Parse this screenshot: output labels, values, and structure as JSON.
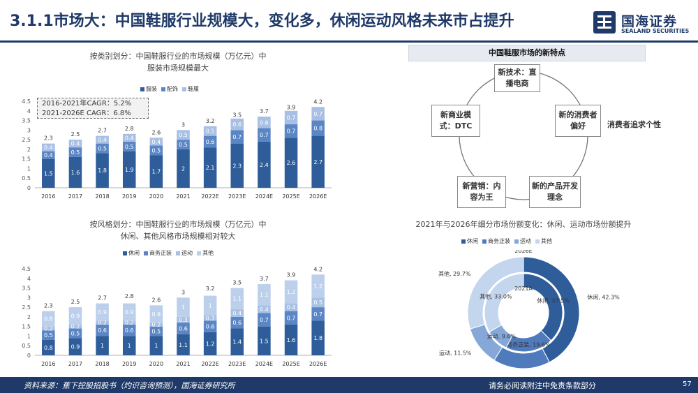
{
  "header": {
    "title": "3.1.1市场大：中国鞋服行业规模大，变化多，休闲运动风格未来市占提升",
    "logo_cn": "国海证券",
    "logo_en": "SEALAND SECURITIES"
  },
  "colors": {
    "navy": "#1f3a68",
    "dark": "#2e5d9a",
    "mid": "#5b86c5",
    "light": "#a8c0e4",
    "pale": "#d5e0f1"
  },
  "chart_left": {
    "title_line1": "按类别划分：中国鞋服行业的市场规模（万亿元）中",
    "title_line2": "服装市场规模最大",
    "cagr_line1": "2016-2021年CAGR：5.2%",
    "cagr_line2": "2021-2026E CAGR：6.8%"
  },
  "chart_right_top": {
    "title": "中国鞋服市场的新特点",
    "nodes": [
      "新技术：直播电商",
      "新的消费者偏好",
      "新的产品开发理念",
      "新营销：内容为王",
      "新商业模式：DTC"
    ],
    "side_note": "消费者追求个性"
  },
  "donut": {
    "title": "2021年与2026年细分市场份额变化：休闲、运动市场份额提升"
  },
  "chart_data": [
    {
      "type": "bar",
      "stacked": true,
      "title": "按类别划分：中国鞋服行业的市场规模（万亿元）中服装市场规模最大",
      "categories": [
        "2016",
        "2017",
        "2018",
        "2019",
        "2020",
        "2021",
        "2022E",
        "2023E",
        "2024E",
        "2025E",
        "2026E"
      ],
      "series": [
        {
          "name": "服装",
          "values": [
            1.5,
            1.6,
            1.8,
            1.9,
            1.7,
            2,
            2.1,
            2.3,
            2.4,
            2.6,
            2.7
          ]
        },
        {
          "name": "配饰",
          "values": [
            0.4,
            0.5,
            0.5,
            0.5,
            0.5,
            0.5,
            0.6,
            0.7,
            0.7,
            0.7,
            0.8
          ]
        },
        {
          "name": "鞋履",
          "values": [
            0.4,
            0.4,
            0.4,
            0.4,
            0.4,
            0.5,
            0.5,
            0.6,
            0.6,
            0.7,
            0.7
          ]
        }
      ],
      "totals": [
        2.3,
        2.5,
        2.7,
        2.8,
        2.6,
        3,
        3.2,
        3.5,
        3.7,
        3.9,
        4.2
      ],
      "segment_labels_shown": [
        [
          "1.5",
          "0.4",
          "0.4"
        ],
        [
          "1.6",
          "0.5",
          "0.4"
        ],
        [
          "1.8",
          "0.5",
          "0.4"
        ],
        [
          "1.9",
          "0.5",
          "0.4"
        ],
        [
          "1.7",
          "0.5",
          "0.4"
        ],
        [
          "2",
          "0.5",
          "0.5"
        ],
        [
          "2.1",
          "0.6",
          "0.5"
        ],
        [
          "2.3",
          "0.7",
          "0.6"
        ],
        [
          "2.4",
          "0.7",
          "0.6"
        ],
        [
          "2.6",
          "0.7",
          "0.7"
        ],
        [
          "2.7",
          "0.8",
          "0.7"
        ]
      ],
      "yticks": [
        "0",
        "0.5",
        "1",
        "1.5",
        "2",
        "2.5",
        "3",
        "3.5",
        "4",
        "4.5"
      ],
      "ylim": [
        0,
        4.5
      ]
    },
    {
      "type": "bar",
      "stacked": true,
      "title": "按风格划分：中国鞋服行业的市场规模（万亿元）中休闲、其他风格市场规模相对较大",
      "categories": [
        "2016",
        "2017",
        "2018",
        "2019",
        "2020",
        "2021",
        "2022E",
        "2023E",
        "2024E",
        "2025E",
        "2026E"
      ],
      "series": [
        {
          "name": "休闲",
          "values": [
            0.8,
            0.9,
            1,
            1,
            1,
            1.1,
            1.2,
            1.4,
            1.5,
            1.6,
            1.8
          ]
        },
        {
          "name": "商务正装",
          "values": [
            0.5,
            0.5,
            0.6,
            0.6,
            0.5,
            0.6,
            0.6,
            0.6,
            0.7,
            0.7,
            0.7
          ]
        },
        {
          "name": "运动",
          "values": [
            0.2,
            0.2,
            0.2,
            0.2,
            0.2,
            0.3,
            0.3,
            0.4,
            0.4,
            0.4,
            0.5
          ]
        },
        {
          "name": "其他",
          "values": [
            0.8,
            0.9,
            0.9,
            0.9,
            0.9,
            1,
            1,
            1.1,
            1.1,
            1.2,
            1.2
          ]
        }
      ],
      "totals": [
        2.3,
        2.5,
        2.7,
        2.8,
        2.6,
        3,
        3.2,
        3.5,
        3.7,
        3.9,
        4.2
      ],
      "yticks": [
        "0",
        "0.5",
        "1",
        "1.5",
        "2",
        "2.5",
        "3",
        "3.5",
        "4",
        "4.5"
      ],
      "ylim": [
        0,
        4.5
      ]
    },
    {
      "type": "pie",
      "donut": true,
      "title": "2021年与2026年细分市场份额变化：休闲、运动市场份额提升",
      "legend": [
        "休闲",
        "商务正装",
        "运动",
        "其他"
      ],
      "rings": [
        {
          "name": "2026E",
          "labels": [
            "休闲, 42.3%",
            "商务正装, 16.5%",
            "运动, 11.5%",
            "其他, 29.7%"
          ],
          "values": [
            42.3,
            16.5,
            11.5,
            29.7
          ]
        },
        {
          "name": "2021A",
          "labels": [
            "休闲, 37.5%",
            "商务正装, 19.6%",
            "运动, 9.6%",
            "其他, 33.0%"
          ],
          "values": [
            37.5,
            19.6,
            9.6,
            33.0
          ]
        }
      ]
    }
  ],
  "footer": {
    "source": "资料来源：蕉下控股招股书（灼识咨询预测），国海证券研究所",
    "notice": "请务必阅读附注中免责条款部分",
    "page": "57"
  }
}
